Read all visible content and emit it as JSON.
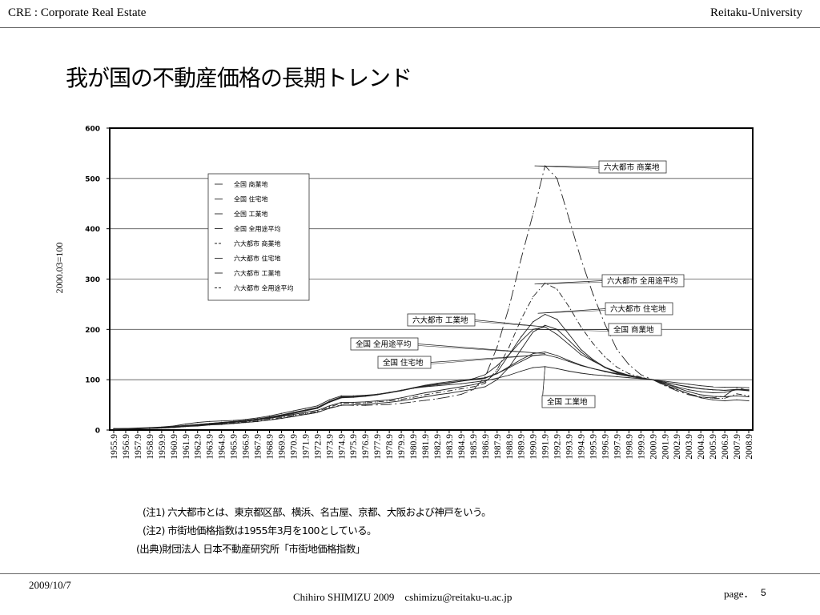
{
  "header": {
    "left": "CRE : Corporate Real Estate",
    "right": "Reitaku-University"
  },
  "slide_title": "我が国の不動産価格の長期トレンド",
  "notes": [
    "(注1) 六大都市とは、東京都区部、横浜、名古屋、京都、大阪および神戸をいう。",
    "(注2) 市街地価格指数は1955年3月を100としている。",
    "(出典)財団法人 日本不動産研究所「市街地価格指数」"
  ],
  "footer": {
    "date": "2009/10/7",
    "author": "Chihiro SHIMIZU 2009　cshimizu@reitaku-u.ac.jp",
    "page_label": "page．",
    "page_number": "5"
  },
  "chart_data": {
    "type": "line",
    "ylabel": "2000.03=100",
    "xlabel": "",
    "ylim": [
      0,
      600
    ],
    "yticks": [
      "0",
      "100",
      "200",
      "300",
      "400",
      "500",
      "600"
    ],
    "grid": "horizontal",
    "legend_position": "top-left",
    "categories": [
      "1955.9",
      "1956.9",
      "1957.9",
      "1958.9",
      "1959.9",
      "1960.9",
      "1961.9",
      "1962.9",
      "1963.9",
      "1964.9",
      "1965.9",
      "1966.9",
      "1967.9",
      "1968.9",
      "1969.9",
      "1970.9",
      "1971.9",
      "1972.9",
      "1973.9",
      "1974.9",
      "1975.9",
      "1976.9",
      "1977.9",
      "1978.9",
      "1979.9",
      "1980.9",
      "1981.9",
      "1982.9",
      "1983.9",
      "1984.9",
      "1985.9",
      "1986.9",
      "1987.9",
      "1988.9",
      "1989.9",
      "1990.9",
      "1991.9",
      "1992.9",
      "1993.9",
      "1994.9",
      "1995.9",
      "1996.9",
      "1997.9",
      "1998.9",
      "1999.9",
      "2000.9",
      "2001.9",
      "2002.9",
      "2003.9",
      "2004.9",
      "2005.9",
      "2006.9",
      "2007.9",
      "2008.9"
    ],
    "series": [
      {
        "name": "全国 商業地",
        "dash": "solid",
        "callout": "全国 商業地",
        "values": [
          3,
          3,
          4,
          5,
          6,
          8,
          12,
          15,
          17,
          18,
          19,
          21,
          24,
          28,
          33,
          38,
          43,
          48,
          60,
          68,
          68,
          69,
          71,
          74,
          78,
          83,
          87,
          90,
          93,
          97,
          102,
          110,
          128,
          150,
          177,
          200,
          205,
          190,
          170,
          150,
          137,
          125,
          116,
          109,
          104,
          100,
          93,
          86,
          80,
          76,
          74,
          75,
          80,
          78
        ]
      },
      {
        "name": "全国 住宅地",
        "dash": "solid",
        "callout": "全国 住宅地",
        "values": [
          1,
          2,
          3,
          3,
          4,
          6,
          8,
          10,
          12,
          14,
          16,
          18,
          21,
          24,
          28,
          33,
          38,
          43,
          55,
          64,
          65,
          67,
          70,
          74,
          79,
          84,
          89,
          93,
          96,
          99,
          101,
          104,
          112,
          124,
          136,
          148,
          150,
          144,
          136,
          128,
          122,
          117,
          112,
          108,
          104,
          100,
          95,
          90,
          86,
          82,
          80,
          79,
          80,
          79
        ]
      },
      {
        "name": "全国 工業地",
        "dash": "solid",
        "callout": "全国 工業地",
        "values": [
          2,
          3,
          3,
          4,
          5,
          7,
          9,
          11,
          13,
          15,
          17,
          19,
          22,
          25,
          29,
          34,
          39,
          44,
          56,
          65,
          66,
          68,
          71,
          75,
          79,
          83,
          86,
          88,
          90,
          92,
          95,
          98,
          103,
          109,
          117,
          124,
          126,
          122,
          117,
          113,
          110,
          108,
          106,
          104,
          102,
          100,
          97,
          94,
          91,
          88,
          86,
          85,
          85,
          84
        ]
      },
      {
        "name": "全国 全用途平均",
        "dash": "solid",
        "callout": "全国 全用途平均",
        "values": [
          2,
          3,
          3,
          4,
          5,
          7,
          9,
          11,
          13,
          15,
          17,
          19,
          22,
          26,
          30,
          35,
          40,
          45,
          57,
          66,
          66,
          68,
          71,
          74,
          79,
          83,
          88,
          91,
          94,
          97,
          100,
          103,
          112,
          126,
          140,
          152,
          155,
          148,
          138,
          129,
          122,
          116,
          111,
          107,
          103,
          100,
          95,
          90,
          85,
          82,
          80,
          79,
          81,
          80
        ]
      },
      {
        "name": "六大都市 商業地",
        "dash": "longdash",
        "callout": "六大都市 商業地",
        "values": [
          2,
          3,
          3,
          4,
          5,
          6,
          8,
          9,
          11,
          12,
          13,
          15,
          17,
          20,
          23,
          27,
          31,
          35,
          44,
          50,
          49,
          49,
          50,
          51,
          53,
          56,
          59,
          62,
          66,
          71,
          80,
          105,
          165,
          245,
          340,
          430,
          525,
          500,
          420,
          340,
          270,
          210,
          160,
          130,
          110,
          100,
          88,
          78,
          70,
          65,
          64,
          68,
          85,
          78
        ]
      },
      {
        "name": "六大都市 住宅地",
        "dash": "solid",
        "callout": "六大都市 住宅地",
        "values": [
          1,
          2,
          2,
          3,
          4,
          5,
          7,
          9,
          11,
          13,
          15,
          17,
          20,
          23,
          27,
          31,
          35,
          39,
          48,
          55,
          55,
          56,
          58,
          60,
          64,
          69,
          74,
          78,
          82,
          86,
          90,
          96,
          115,
          150,
          185,
          215,
          230,
          220,
          190,
          160,
          140,
          125,
          115,
          108,
          104,
          100,
          90,
          81,
          72,
          64,
          60,
          58,
          60,
          58
        ]
      },
      {
        "name": "六大都市 工業地",
        "dash": "solid",
        "callout": "六大都市 工業地",
        "values": [
          2,
          2,
          3,
          3,
          4,
          5,
          7,
          8,
          10,
          11,
          13,
          15,
          17,
          20,
          23,
          27,
          31,
          35,
          43,
          49,
          50,
          51,
          53,
          55,
          58,
          62,
          66,
          70,
          73,
          77,
          81,
          86,
          100,
          125,
          160,
          195,
          208,
          200,
          178,
          155,
          138,
          124,
          114,
          107,
          103,
          100,
          92,
          84,
          76,
          70,
          67,
          66,
          68,
          66
        ]
      },
      {
        "name": "六大都市 全用途平均",
        "dash": "dashdot",
        "callout": "六大都市 全用途平均",
        "values": [
          2,
          2,
          3,
          3,
          4,
          5,
          7,
          9,
          11,
          12,
          14,
          16,
          18,
          21,
          25,
          29,
          33,
          37,
          46,
          53,
          53,
          54,
          56,
          58,
          61,
          65,
          70,
          74,
          78,
          82,
          86,
          93,
          120,
          165,
          220,
          265,
          292,
          280,
          245,
          205,
          172,
          145,
          125,
          112,
          105,
          100,
          89,
          80,
          72,
          66,
          63,
          63,
          72,
          68
        ]
      }
    ]
  }
}
